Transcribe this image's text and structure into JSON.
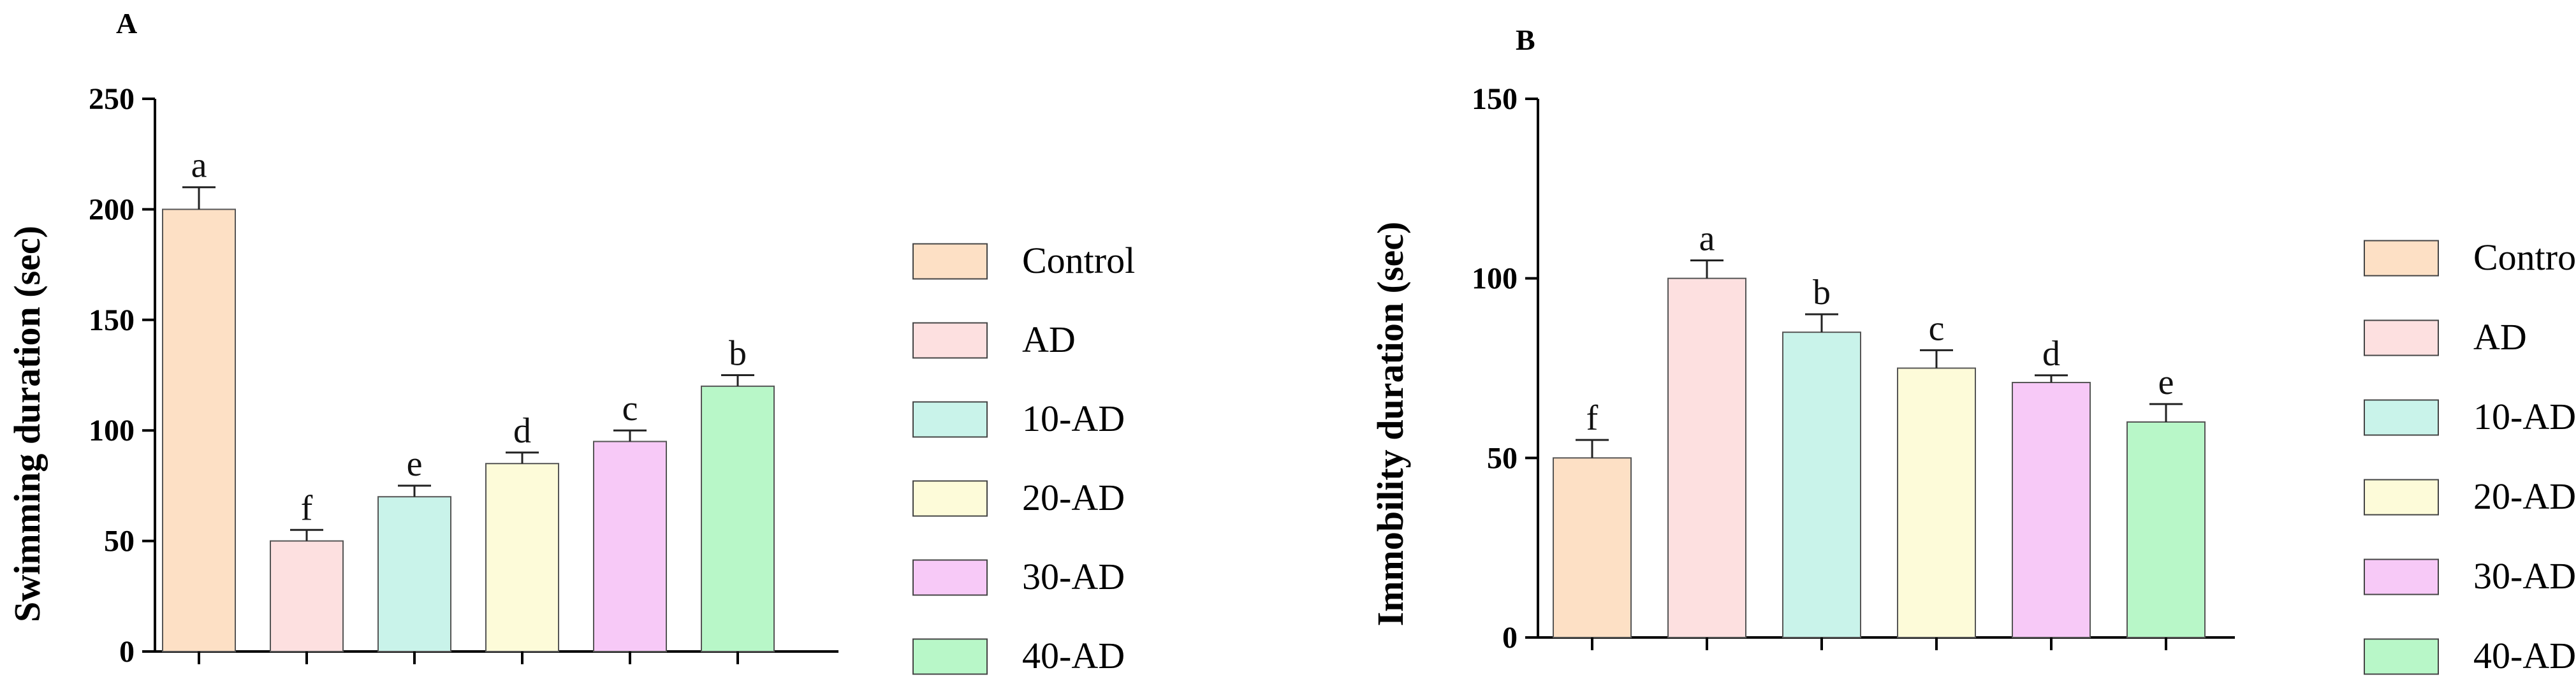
{
  "colors": {
    "Control": "#fde0c5",
    "AD": "#fde0e0",
    "10-AD": "#c9f3ea",
    "20-AD": "#fdfbd9",
    "30-AD": "#f7c9f7",
    "40-AD": "#b8f7c8",
    "axis": "#000000"
  },
  "legend_labels": [
    "Control",
    "AD",
    "10-AD",
    "20-AD",
    "30-AD",
    "40-AD"
  ],
  "chart_data": [
    {
      "panel": "A",
      "type": "bar",
      "title": "",
      "xlabel": "",
      "ylabel": "Swimming duration (sec)",
      "categories": [
        "Control",
        "AD",
        "10-AD",
        "20-AD",
        "30-AD",
        "40-AD"
      ],
      "values": [
        200,
        50,
        70,
        85,
        95,
        120
      ],
      "errors": [
        10,
        5,
        5,
        5,
        5,
        5
      ],
      "sig_letters": [
        "a",
        "f",
        "e",
        "d",
        "c",
        "b"
      ],
      "ylim": [
        0,
        250
      ],
      "yticks": [
        0,
        50,
        100,
        150,
        200,
        250
      ],
      "ytick_labels": [
        "0",
        "50",
        "100",
        "150",
        "200",
        "250"
      ],
      "legend_position": "right"
    },
    {
      "panel": "B",
      "type": "bar",
      "title": "",
      "xlabel": "",
      "ylabel": "Immobility duration (sec)",
      "categories": [
        "Control",
        "AD",
        "10-AD",
        "20-AD",
        "30-AD",
        "40-AD"
      ],
      "values": [
        50,
        100,
        85,
        75,
        71,
        60
      ],
      "errors": [
        5,
        5,
        5,
        5,
        2,
        5
      ],
      "sig_letters": [
        "f",
        "a",
        "b",
        "c",
        "d",
        "e"
      ],
      "ylim": [
        0,
        150
      ],
      "yticks": [
        0,
        50,
        100,
        150
      ],
      "ytick_labels": [
        "0",
        "50",
        "100",
        "150"
      ],
      "legend_position": "right"
    }
  ]
}
